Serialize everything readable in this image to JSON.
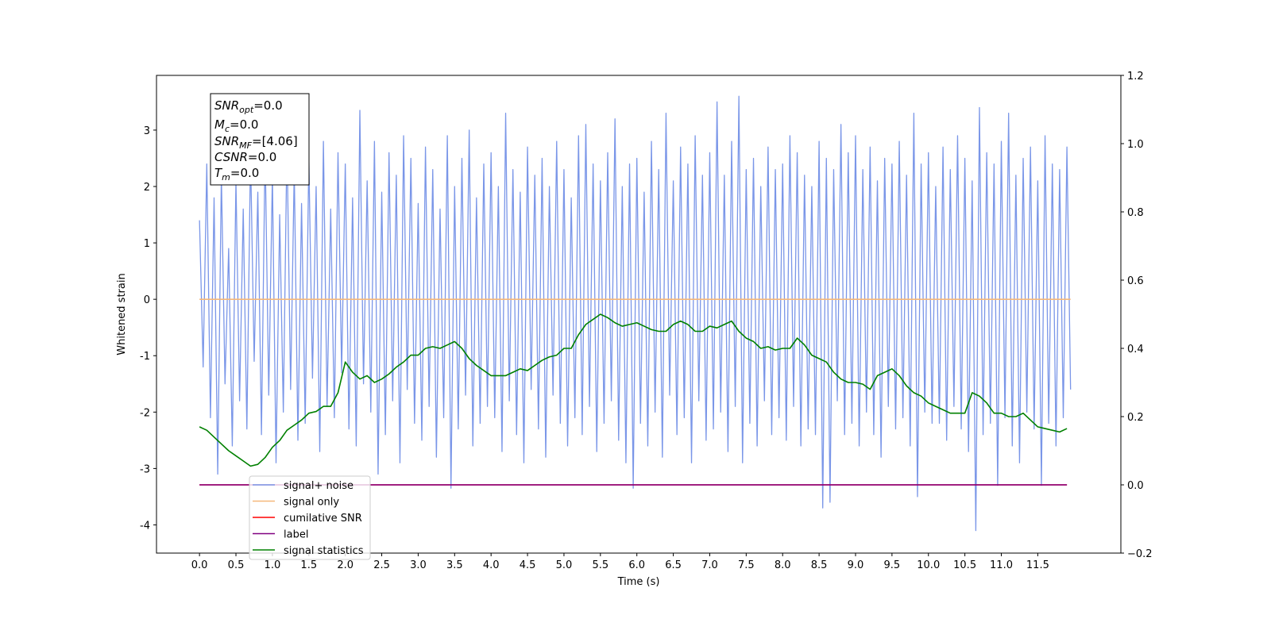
{
  "chart_data": {
    "type": "line",
    "xlabel": "Time (s)",
    "ylabel": "Whitened strain",
    "xlim": [
      -0.59,
      12.64
    ],
    "ylim": [
      -4.5,
      3.97
    ],
    "y2lim": [
      -0.2,
      1.2
    ],
    "xticks": [
      {
        "value": 0,
        "label": "0.0"
      },
      {
        "value": 0.5,
        "label": "0.5"
      },
      {
        "value": 1,
        "label": "1.0"
      },
      {
        "value": 1.5,
        "label": "1.5"
      },
      {
        "value": 2,
        "label": "2.0"
      },
      {
        "value": 2.5,
        "label": "2.5"
      },
      {
        "value": 3,
        "label": "3.0"
      },
      {
        "value": 3.5,
        "label": "3.5"
      },
      {
        "value": 4,
        "label": "4.0"
      },
      {
        "value": 4.5,
        "label": "4.5"
      },
      {
        "value": 5,
        "label": "5.0"
      },
      {
        "value": 5.5,
        "label": "5.5"
      },
      {
        "value": 6,
        "label": "6.0"
      },
      {
        "value": 6.5,
        "label": "6.5"
      },
      {
        "value": 7,
        "label": "7.0"
      },
      {
        "value": 7.5,
        "label": "7.5"
      },
      {
        "value": 8,
        "label": "8.0"
      },
      {
        "value": 8.5,
        "label": "8.5"
      },
      {
        "value": 9,
        "label": "9.0"
      },
      {
        "value": 9.5,
        "label": "9.5"
      },
      {
        "value": 10,
        "label": "10.0"
      },
      {
        "value": 10.5,
        "label": "10.5"
      },
      {
        "value": 11,
        "label": "11.0"
      },
      {
        "value": 11.5,
        "label": "11.5"
      }
    ],
    "yticks": [
      -4,
      -3,
      -2,
      -1,
      0,
      1,
      2,
      3
    ],
    "y2ticks": [
      {
        "value": -0.2,
        "label": "−0.2"
      },
      {
        "value": 0,
        "label": "0.0"
      },
      {
        "value": 0.2,
        "label": "0.2"
      },
      {
        "value": 0.4,
        "label": "0.4"
      },
      {
        "value": 0.6,
        "label": "0.6"
      },
      {
        "value": 0.8,
        "label": "0.8"
      },
      {
        "value": 1,
        "label": "1.0"
      },
      {
        "value": 1.2,
        "label": "1.2"
      }
    ],
    "grid": false,
    "legend": "lower left",
    "annotations": [
      {
        "name": "SNR",
        "sub": "opt",
        "text": "=0.0"
      },
      {
        "name": "M",
        "sub": "c",
        "text": "=0.0"
      },
      {
        "name": "SNR",
        "sub": "MF",
        "text": "=[4.06]"
      },
      {
        "name": "CSNR",
        "sub": "",
        "text": "=0.0"
      },
      {
        "name": "T",
        "sub": "m",
        "text": "=0.0"
      }
    ],
    "series": [
      {
        "name": "signal+ noise",
        "color": "#7a96e8",
        "axis": "y",
        "x": [
          0,
          0.05,
          0.1,
          0.15,
          0.2,
          0.25,
          0.3,
          0.35,
          0.4,
          0.45,
          0.5,
          0.55,
          0.6,
          0.65,
          0.7,
          0.75,
          0.8,
          0.85,
          0.9,
          0.95,
          1,
          1.05,
          1.1,
          1.15,
          1.2,
          1.25,
          1.3,
          1.35,
          1.4,
          1.45,
          1.5,
          1.55,
          1.6,
          1.65,
          1.7,
          1.75,
          1.8,
          1.85,
          1.9,
          1.95,
          2,
          2.05,
          2.1,
          2.15,
          2.2,
          2.25,
          2.3,
          2.35,
          2.4,
          2.45,
          2.5,
          2.55,
          2.6,
          2.65,
          2.7,
          2.75,
          2.8,
          2.85,
          2.9,
          2.95,
          3,
          3.05,
          3.1,
          3.15,
          3.2,
          3.25,
          3.3,
          3.35,
          3.4,
          3.45,
          3.5,
          3.55,
          3.6,
          3.65,
          3.7,
          3.75,
          3.8,
          3.85,
          3.9,
          3.95,
          4,
          4.05,
          4.1,
          4.15,
          4.2,
          4.25,
          4.3,
          4.35,
          4.4,
          4.45,
          4.5,
          4.55,
          4.6,
          4.65,
          4.7,
          4.75,
          4.8,
          4.85,
          4.9,
          4.95,
          5,
          5.05,
          5.1,
          5.15,
          5.2,
          5.25,
          5.3,
          5.35,
          5.4,
          5.45,
          5.5,
          5.55,
          5.6,
          5.65,
          5.7,
          5.75,
          5.8,
          5.85,
          5.9,
          5.95,
          6,
          6.05,
          6.1,
          6.15,
          6.2,
          6.25,
          6.3,
          6.35,
          6.4,
          6.45,
          6.5,
          6.55,
          6.6,
          6.65,
          6.7,
          6.75,
          6.8,
          6.85,
          6.9,
          6.95,
          7,
          7.05,
          7.1,
          7.15,
          7.2,
          7.25,
          7.3,
          7.35,
          7.4,
          7.45,
          7.5,
          7.55,
          7.6,
          7.65,
          7.7,
          7.75,
          7.8,
          7.85,
          7.9,
          7.95,
          8,
          8.05,
          8.1,
          8.15,
          8.2,
          8.25,
          8.3,
          8.35,
          8.4,
          8.45,
          8.5,
          8.55,
          8.6,
          8.65,
          8.7,
          8.75,
          8.8,
          8.85,
          8.9,
          8.95,
          9,
          9.05,
          9.1,
          9.15,
          9.2,
          9.25,
          9.3,
          9.35,
          9.4,
          9.45,
          9.5,
          9.55,
          9.6,
          9.65,
          9.7,
          9.75,
          9.8,
          9.85,
          9.9,
          9.95,
          10,
          10.05,
          10.1,
          10.15,
          10.2,
          10.25,
          10.3,
          10.35,
          10.4,
          10.45,
          10.5,
          10.55,
          10.6,
          10.65,
          10.7,
          10.75,
          10.8,
          10.85,
          10.9,
          10.95,
          11,
          11.05,
          11.1,
          11.15,
          11.2,
          11.25,
          11.3,
          11.35,
          11.4,
          11.45,
          11.5,
          11.55,
          11.6,
          11.65,
          11.7,
          11.75,
          11.8,
          11.85,
          11.9,
          11.95
        ],
        "values": [
          1.4,
          -1.2,
          2.4,
          -2.1,
          1.8,
          -3.1,
          2.2,
          -1.5,
          0.9,
          -2.6,
          2.1,
          -1.8,
          1.6,
          -2.3,
          2.6,
          -1.1,
          1.9,
          -2.4,
          2.7,
          -1.7,
          2.2,
          -2.9,
          1.5,
          -2.0,
          2.8,
          -1.6,
          2.3,
          -2.5,
          1.7,
          -2.2,
          2.5,
          -1.4,
          2.0,
          -2.7,
          2.8,
          -1.9,
          1.6,
          -2.1,
          2.6,
          -1.3,
          2.4,
          -2.3,
          1.8,
          -2.6,
          3.35,
          -1.5,
          2.1,
          -2.0,
          2.8,
          -3.1,
          1.9,
          -2.4,
          2.6,
          -1.8,
          2.2,
          -2.9,
          2.9,
          -1.6,
          2.5,
          -2.2,
          1.7,
          -2.5,
          2.7,
          -1.9,
          2.3,
          -2.8,
          1.6,
          -2.1,
          2.9,
          -3.35,
          2.0,
          -2.3,
          2.5,
          -1.7,
          3.0,
          -2.6,
          1.8,
          -2.2,
          2.4,
          -1.9,
          2.6,
          -2.1,
          2.0,
          -2.7,
          3.3,
          -1.8,
          2.3,
          -2.4,
          1.9,
          -2.9,
          2.7,
          -1.6,
          2.2,
          -2.3,
          2.5,
          -2.8,
          2.0,
          -1.7,
          2.8,
          -2.2,
          2.3,
          -2.6,
          1.8,
          -2.1,
          2.9,
          -2.4,
          3.1,
          -1.9,
          2.4,
          -2.7,
          2.1,
          -2.2,
          2.6,
          -1.8,
          3.2,
          -2.5,
          2.0,
          -2.9,
          2.4,
          -3.35,
          2.5,
          -2.2,
          1.9,
          -2.6,
          2.8,
          -2.0,
          2.3,
          -2.8,
          3.3,
          -1.7,
          2.1,
          -2.4,
          2.7,
          -2.1,
          2.4,
          -2.9,
          2.9,
          -1.8,
          2.2,
          -2.5,
          2.6,
          -2.3,
          3.5,
          -2.0,
          2.2,
          -2.7,
          2.8,
          -1.9,
          3.6,
          -2.9,
          2.3,
          -2.2,
          2.5,
          -2.6,
          2.0,
          -1.8,
          2.7,
          -2.4,
          2.3,
          -2.1,
          2.4,
          -2.5,
          2.9,
          -1.9,
          2.6,
          -2.6,
          2.2,
          -2.3,
          2.0,
          -2.4,
          2.8,
          -3.7,
          2.5,
          -3.6,
          2.3,
          -1.8,
          3.1,
          -2.4,
          2.6,
          -2.2,
          2.9,
          -2.6,
          2.3,
          -2.0,
          2.7,
          -2.4,
          2.1,
          -2.8,
          2.5,
          -1.9,
          2.4,
          -2.3,
          2.8,
          -2.1,
          2.2,
          -2.6,
          3.3,
          -3.5,
          2.4,
          -2.0,
          2.6,
          -2.2,
          2.0,
          -2.2,
          2.7,
          -2.5,
          2.3,
          -1.9,
          2.9,
          -2.3,
          2.5,
          -2.7,
          2.1,
          -4.1,
          3.4,
          -2.4,
          2.6,
          -2.2,
          2.4,
          -3.3,
          2.8,
          -2.1,
          3.3,
          -2.6,
          2.2,
          -2.9,
          2.5,
          -2.0,
          2.7,
          -2.3,
          2.1,
          -3.3,
          2.9,
          -2.2,
          2.4,
          -2.6,
          2.3,
          -2.1,
          2.7,
          -1.6
        ]
      },
      {
        "name": "signal only",
        "color": "#f5b87a",
        "axis": "y",
        "x": [
          0,
          11.95
        ],
        "values": [
          0,
          0
        ]
      },
      {
        "name": "cumilative SNR",
        "color": "#ff0000",
        "axis": "y2",
        "x": [
          0,
          11.9
        ],
        "values": [
          0,
          0
        ]
      },
      {
        "name": "label",
        "color": "#800080",
        "axis": "y2",
        "x": [
          0,
          11.9
        ],
        "values": [
          0,
          0
        ]
      },
      {
        "name": "signal statistics",
        "color": "#008000",
        "axis": "y2",
        "x": [
          0,
          0.1,
          0.2,
          0.3,
          0.4,
          0.5,
          0.6,
          0.7,
          0.8,
          0.9,
          1,
          1.1,
          1.2,
          1.3,
          1.4,
          1.5,
          1.6,
          1.7,
          1.8,
          1.9,
          2,
          2.1,
          2.2,
          2.3,
          2.4,
          2.5,
          2.6,
          2.7,
          2.8,
          2.9,
          3,
          3.1,
          3.2,
          3.3,
          3.4,
          3.5,
          3.6,
          3.7,
          3.8,
          3.9,
          4,
          4.1,
          4.2,
          4.3,
          4.4,
          4.5,
          4.6,
          4.7,
          4.8,
          4.9,
          5,
          5.1,
          5.2,
          5.3,
          5.4,
          5.5,
          5.6,
          5.7,
          5.8,
          5.9,
          6,
          6.1,
          6.2,
          6.3,
          6.4,
          6.5,
          6.6,
          6.7,
          6.8,
          6.9,
          7,
          7.1,
          7.2,
          7.3,
          7.4,
          7.5,
          7.6,
          7.7,
          7.8,
          7.9,
          8,
          8.1,
          8.2,
          8.3,
          8.4,
          8.5,
          8.6,
          8.7,
          8.8,
          8.9,
          9,
          9.1,
          9.2,
          9.3,
          9.4,
          9.5,
          9.6,
          9.7,
          9.8,
          9.9,
          10,
          10.1,
          10.2,
          10.3,
          10.4,
          10.5,
          10.6,
          10.7,
          10.8,
          10.9,
          11,
          11.1,
          11.2,
          11.3,
          11.4,
          11.5,
          11.6,
          11.7,
          11.8,
          11.9
        ],
        "values": [
          0.17,
          0.16,
          0.14,
          0.12,
          0.1,
          0.085,
          0.07,
          0.055,
          0.06,
          0.08,
          0.11,
          0.13,
          0.16,
          0.175,
          0.19,
          0.21,
          0.215,
          0.23,
          0.23,
          0.27,
          0.36,
          0.33,
          0.31,
          0.32,
          0.3,
          0.31,
          0.325,
          0.345,
          0.36,
          0.38,
          0.38,
          0.4,
          0.405,
          0.4,
          0.41,
          0.42,
          0.4,
          0.37,
          0.35,
          0.335,
          0.32,
          0.32,
          0.32,
          0.33,
          0.34,
          0.335,
          0.35,
          0.365,
          0.375,
          0.38,
          0.4,
          0.4,
          0.44,
          0.47,
          0.485,
          0.5,
          0.49,
          0.475,
          0.465,
          0.47,
          0.475,
          0.465,
          0.455,
          0.45,
          0.45,
          0.47,
          0.48,
          0.47,
          0.45,
          0.45,
          0.465,
          0.46,
          0.47,
          0.48,
          0.45,
          0.43,
          0.42,
          0.4,
          0.405,
          0.395,
          0.4,
          0.4,
          0.43,
          0.41,
          0.38,
          0.37,
          0.36,
          0.33,
          0.31,
          0.3,
          0.3,
          0.295,
          0.28,
          0.32,
          0.33,
          0.34,
          0.32,
          0.29,
          0.27,
          0.26,
          0.24,
          0.23,
          0.22,
          0.21,
          0.21,
          0.21,
          0.27,
          0.26,
          0.24,
          0.21,
          0.21,
          0.2,
          0.2,
          0.21,
          0.19,
          0.17,
          0.165,
          0.16,
          0.155,
          0.165
        ]
      }
    ]
  }
}
